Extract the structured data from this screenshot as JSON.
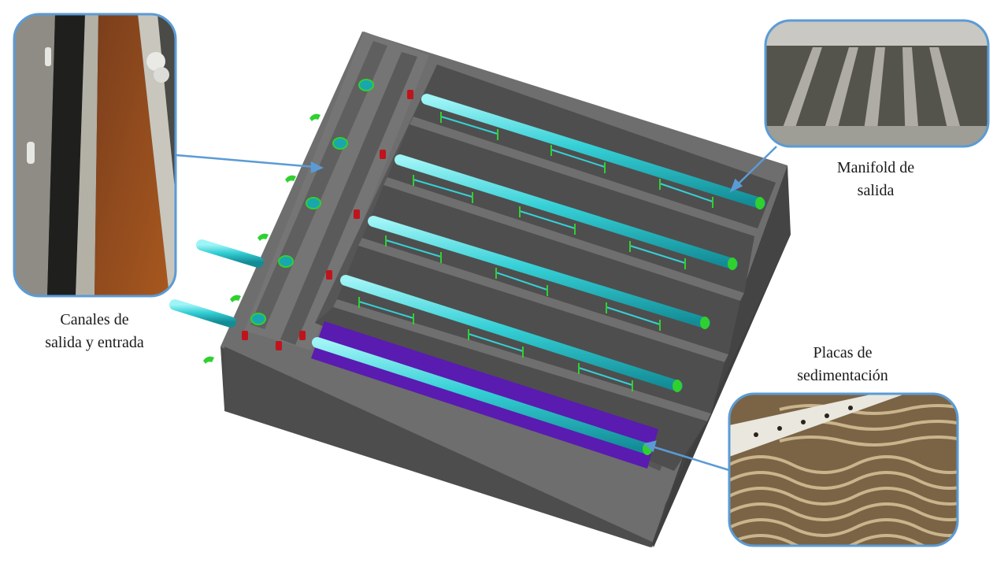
{
  "labels": {
    "channels": {
      "line1": "Canales de",
      "line2": "salida y entrada"
    },
    "manifold": {
      "line1": "Manifold de",
      "line2": "salida"
    },
    "plates": {
      "line1": "Placas de",
      "line2": "sedimentación"
    }
  },
  "colors": {
    "concrete_dark": "#505050",
    "concrete_mid": "#6b6b6b",
    "concrete_light": "#8a8a8a",
    "pipe_cyan": "#35d0d6",
    "fitting_green": "#2fd12f",
    "valve_red": "#c0141c",
    "plate_purple": "#5a1bb0",
    "callout_blue": "#5b9bd5"
  },
  "photos": {
    "channels_photo": "photo-channels",
    "manifold_photo": "photo-manifold",
    "plates_photo": "photo-plates"
  }
}
